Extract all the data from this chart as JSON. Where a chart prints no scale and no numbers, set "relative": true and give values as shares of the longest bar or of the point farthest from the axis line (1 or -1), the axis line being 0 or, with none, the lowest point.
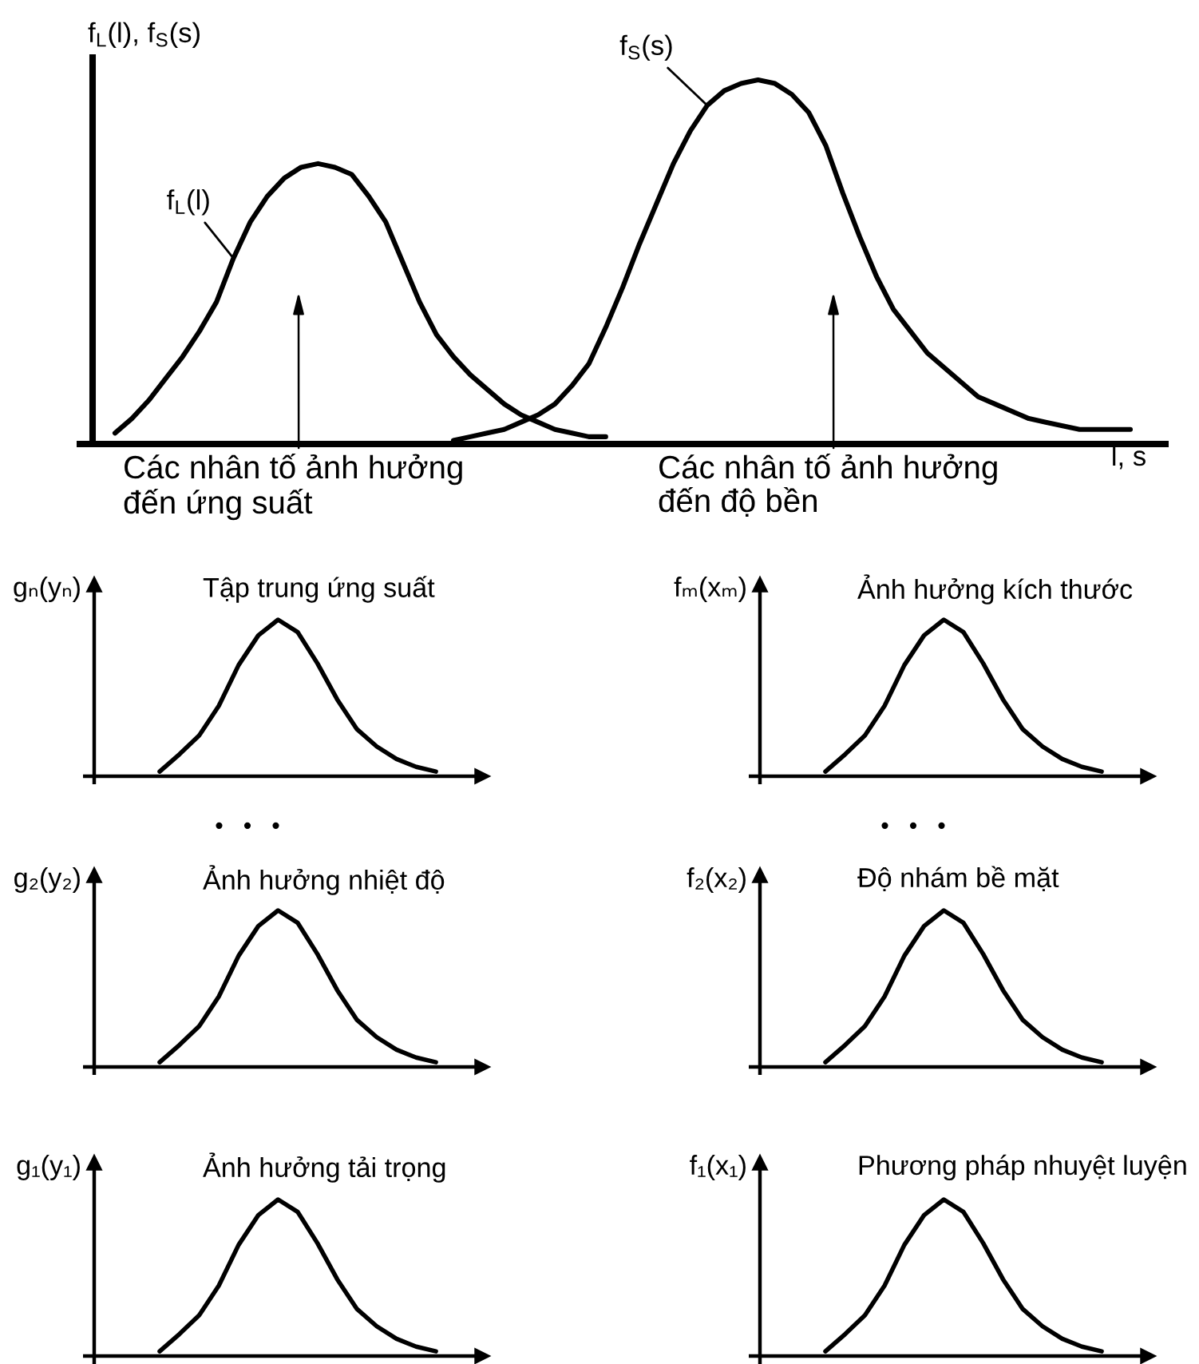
{
  "chart_data": [
    {
      "type": "line",
      "relative": true,
      "ylabel": "f$_{L}$(l), f$_{S}$(s)",
      "xlabel": "l, s",
      "categories": [
        null,
        null,
        null,
        null,
        null,
        null,
        null,
        null,
        null,
        null,
        null,
        null,
        null,
        null,
        null,
        null,
        null,
        null,
        null,
        null,
        null,
        null,
        null,
        null,
        null,
        null,
        null,
        null,
        null,
        null,
        null,
        null,
        null,
        null,
        null,
        null,
        null,
        null,
        null,
        null,
        null,
        null,
        null,
        null,
        null,
        null,
        null,
        null,
        null,
        null,
        null,
        null,
        null,
        null,
        null,
        null,
        null,
        null,
        null,
        null,
        null
      ],
      "series": [
        {
          "name": "f$_{L}$(l)",
          "color": "#000000",
          "values": [
            0.03,
            0.07,
            0.12,
            0.18,
            0.24,
            0.31,
            0.39,
            0.51,
            0.61,
            0.68,
            0.73,
            0.76,
            0.77,
            0.76,
            0.74,
            0.68,
            0.61,
            0.5,
            0.39,
            0.3,
            0.24,
            0.19,
            0.15,
            0.11,
            0.08,
            0.06,
            0.04,
            0.03,
            0.02,
            0.02,
            null,
            null,
            null,
            null,
            null,
            null,
            null,
            null,
            null,
            null,
            null,
            null,
            null,
            null,
            null,
            null,
            null,
            null,
            null,
            null,
            null,
            null,
            null,
            null,
            null,
            null,
            null,
            null,
            null,
            null,
            null
          ]
        },
        {
          "name": "f$_{S}$(s)",
          "color": "#000000",
          "values": [
            null,
            null,
            null,
            null,
            null,
            null,
            null,
            null,
            null,
            null,
            null,
            null,
            null,
            null,
            null,
            null,
            null,
            null,
            null,
            null,
            0.01,
            0.02,
            0.03,
            0.04,
            0.06,
            0.08,
            0.11,
            0.16,
            0.22,
            0.32,
            0.43,
            0.55,
            0.66,
            0.77,
            0.86,
            0.93,
            0.97,
            0.99,
            1.0,
            0.99,
            0.96,
            0.91,
            0.82,
            0.69,
            0.57,
            0.46,
            0.37,
            0.31,
            0.25,
            0.21,
            0.17,
            0.13,
            0.11,
            0.09,
            0.07,
            0.06,
            0.05,
            0.04,
            0.04,
            0.04,
            0.04
          ]
        }
      ],
      "annotations": [
        "Các nhân tố ảnh hưởng\nđến ứng suất",
        "Các nhân tố ảnh hưởng\nđến độ bền"
      ]
    },
    {
      "type": "line",
      "relative": true,
      "title": "Tập trung ứng suất",
      "ylabel": "gₙ(yₙ)",
      "categories": [
        null,
        null,
        null,
        null,
        null,
        null,
        null,
        null,
        null,
        null,
        null,
        null,
        null,
        null,
        null
      ],
      "series": [
        {
          "color": "#000000",
          "values": [
            0.03,
            0.14,
            0.26,
            0.45,
            0.71,
            0.9,
            1.0,
            0.92,
            0.72,
            0.49,
            0.3,
            0.19,
            0.11,
            0.06,
            0.03
          ]
        }
      ]
    },
    {
      "type": "line",
      "relative": true,
      "title": "Ảnh hưởng kích thước",
      "ylabel": "fₘ(xₘ)",
      "categories": [
        null,
        null,
        null,
        null,
        null,
        null,
        null,
        null,
        null,
        null,
        null,
        null,
        null,
        null,
        null
      ],
      "series": [
        {
          "color": "#000000",
          "values": [
            0.03,
            0.14,
            0.26,
            0.45,
            0.71,
            0.9,
            1.0,
            0.92,
            0.72,
            0.49,
            0.3,
            0.19,
            0.11,
            0.06,
            0.03
          ]
        }
      ]
    },
    {
      "type": "line",
      "relative": true,
      "title": "Ảnh hưởng nhiệt độ",
      "ylabel": "g₂(y₂)",
      "annotations": [
        "•   •   •"
      ],
      "categories": [
        null,
        null,
        null,
        null,
        null,
        null,
        null,
        null,
        null,
        null,
        null,
        null,
        null,
        null,
        null
      ],
      "series": [
        {
          "color": "#000000",
          "values": [
            0.03,
            0.14,
            0.26,
            0.45,
            0.71,
            0.9,
            1.0,
            0.92,
            0.72,
            0.49,
            0.3,
            0.19,
            0.11,
            0.06,
            0.03
          ]
        }
      ]
    },
    {
      "type": "line",
      "relative": true,
      "title": "Độ nhám bề mặt",
      "ylabel": "f₂(x₂)",
      "annotations": [
        "•   •   •"
      ],
      "categories": [
        null,
        null,
        null,
        null,
        null,
        null,
        null,
        null,
        null,
        null,
        null,
        null,
        null,
        null,
        null
      ],
      "series": [
        {
          "color": "#000000",
          "values": [
            0.03,
            0.14,
            0.26,
            0.45,
            0.71,
            0.9,
            1.0,
            0.92,
            0.72,
            0.49,
            0.3,
            0.19,
            0.11,
            0.06,
            0.03
          ]
        }
      ]
    },
    {
      "type": "line",
      "relative": true,
      "title": "Ảnh hưởng tải trọng",
      "ylabel": "g₁(y₁)",
      "categories": [
        null,
        null,
        null,
        null,
        null,
        null,
        null,
        null,
        null,
        null,
        null,
        null,
        null,
        null,
        null
      ],
      "series": [
        {
          "color": "#000000",
          "values": [
            0.03,
            0.14,
            0.26,
            0.45,
            0.71,
            0.9,
            1.0,
            0.92,
            0.72,
            0.49,
            0.3,
            0.19,
            0.11,
            0.06,
            0.03
          ]
        }
      ]
    },
    {
      "type": "line",
      "relative": true,
      "title": "Phương pháp nhuyệt luyện",
      "ylabel": "f₁(x₁)",
      "categories": [
        null,
        null,
        null,
        null,
        null,
        null,
        null,
        null,
        null,
        null,
        null,
        null,
        null,
        null,
        null
      ],
      "series": [
        {
          "color": "#000000",
          "values": [
            0.03,
            0.14,
            0.26,
            0.45,
            0.71,
            0.9,
            1.0,
            0.92,
            0.72,
            0.49,
            0.3,
            0.19,
            0.11,
            0.06,
            0.03
          ]
        }
      ]
    }
  ]
}
